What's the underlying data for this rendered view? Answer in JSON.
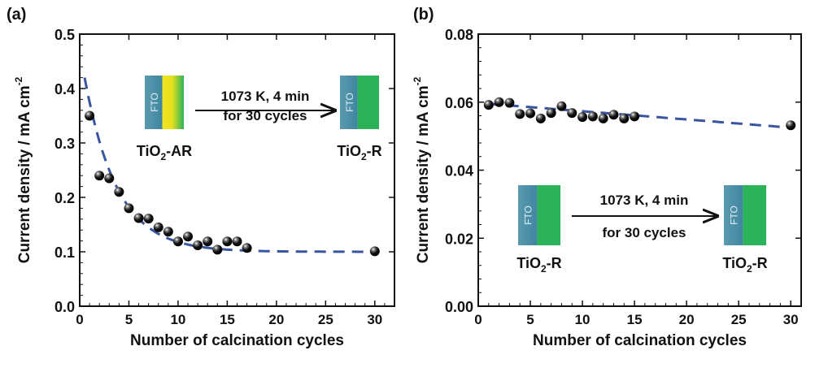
{
  "chart_data": [
    {
      "type": "scatter",
      "panel_label": "(a)",
      "xlabel": "Number of calcination cycles",
      "ylabel": "Current density / mA cm",
      "ylabel_sup": "-2",
      "xlim": [
        0,
        32
      ],
      "ylim": [
        0,
        0.5
      ],
      "xticks": [
        0,
        5,
        10,
        15,
        20,
        25,
        30
      ],
      "yticks": [
        "0.0",
        "0.1",
        "0.2",
        "0.3",
        "0.4",
        "0.5"
      ],
      "grid": false,
      "points": {
        "x": [
          1,
          2,
          3,
          4,
          5,
          6,
          7,
          8,
          9,
          10,
          11,
          12,
          13,
          14,
          15,
          16,
          17,
          30
        ],
        "y": [
          0.35,
          0.24,
          0.235,
          0.21,
          0.18,
          0.162,
          0.161,
          0.145,
          0.137,
          0.119,
          0.128,
          0.112,
          0.119,
          0.104,
          0.119,
          0.119,
          0.107,
          0.101
        ]
      },
      "fit": {
        "style": "dashed",
        "type": "exponential decay",
        "x_range": [
          0.5,
          30
        ],
        "y_start": 0.42,
        "y_end": 0.1
      },
      "inset": {
        "condition_line1": "1073 K, 4 min",
        "condition_line2": "for 30 cycles",
        "left_label": "TiO",
        "left_sub": "2",
        "left_suffix": "-AR",
        "right_label": "TiO",
        "right_sub": "2",
        "right_suffix": "-R",
        "substrate_label": "FTO"
      }
    },
    {
      "type": "scatter",
      "panel_label": "(b)",
      "xlabel": "Number of calcination cycles",
      "ylabel": "Current density / mA cm",
      "ylabel_sup": "-2",
      "xlim": [
        0,
        31
      ],
      "ylim": [
        0,
        0.08
      ],
      "xticks": [
        0,
        5,
        10,
        15,
        20,
        25,
        30
      ],
      "yticks": [
        "0.00",
        "0.02",
        "0.04",
        "0.06",
        "0.08"
      ],
      "grid": false,
      "points": {
        "x": [
          1,
          2,
          3,
          4,
          5,
          6,
          7,
          8,
          9,
          10,
          11,
          12,
          13,
          14,
          15,
          30
        ],
        "y": [
          0.0592,
          0.06,
          0.0598,
          0.0565,
          0.0567,
          0.0552,
          0.0568,
          0.0588,
          0.0568,
          0.0556,
          0.0558,
          0.0552,
          0.0563,
          0.0552,
          0.0558,
          0.0532
        ]
      },
      "fit": {
        "style": "dashed",
        "type": "linear",
        "x_range": [
          1,
          30
        ],
        "y_start": 0.0595,
        "y_end": 0.0525
      },
      "inset": {
        "condition_line1": "1073 K, 4 min",
        "condition_line2": "for 30 cycles",
        "left_label": "TiO",
        "left_sub": "2",
        "left_suffix": "-R",
        "right_label": "TiO",
        "right_sub": "2",
        "right_suffix": "-R",
        "substrate_label": "FTO"
      }
    }
  ],
  "colors": {
    "fit_line": "#3a55a0",
    "marker": "#111111",
    "fto": "#4a8ea8",
    "tio2_green": "#2cb35a",
    "tio2_yellow": "#f0e020"
  }
}
